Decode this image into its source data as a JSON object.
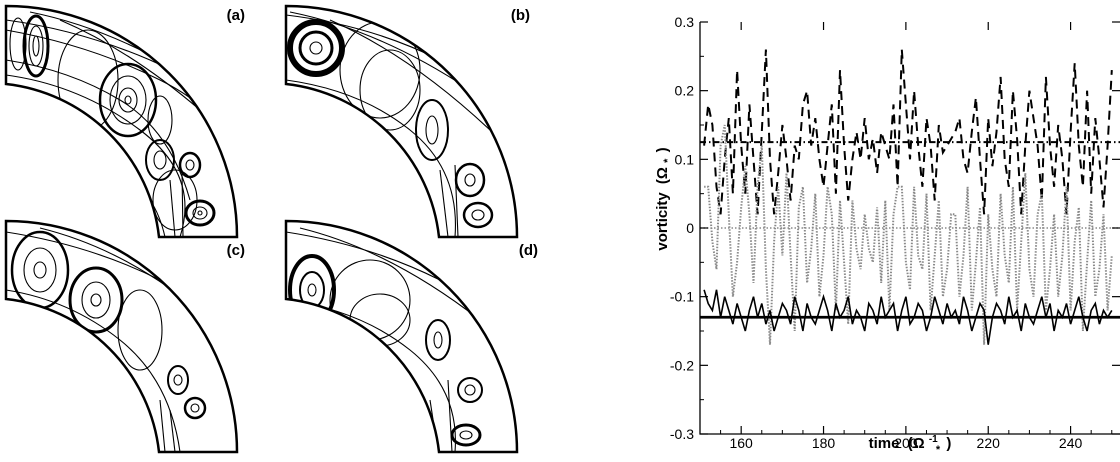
{
  "panels": [
    {
      "label": "(a)"
    },
    {
      "label": "(b)"
    },
    {
      "label": "(c)"
    },
    {
      "label": "(d)"
    }
  ],
  "colors": {
    "ink": "#000000",
    "dotted": "#8a8a8a"
  },
  "chart_data": {
    "type": "line",
    "title": "",
    "xlabel": "time",
    "xlabel_unit": "(Ω",
    "xlabel_unit_sub": "*",
    "xlabel_unit_sup": "-1",
    "xlabel_close": ")",
    "ylabel": "vorticity",
    "ylabel_unit": "(Ω",
    "ylabel_unit_sub": "*",
    "ylabel_close": ")",
    "xlim": [
      150,
      252
    ],
    "ylim": [
      -0.3,
      0.3
    ],
    "x_ticks": [
      160,
      180,
      200,
      220,
      240
    ],
    "x_tick_labels": [
      "160",
      "180",
      "200",
      "220",
      "240"
    ],
    "y_ticks": [
      -0.3,
      -0.2,
      -0.1,
      0,
      0.1,
      0.2,
      0.3
    ],
    "y_tick_labels": [
      "-0.3",
      "-0.2",
      "-0.1",
      "0",
      "0.1",
      "0.2",
      "0.3"
    ],
    "grid": false,
    "series": [
      {
        "style": "dashed",
        "x": [
          151,
          152,
          153,
          154,
          155,
          156,
          157,
          158,
          159,
          160,
          161,
          162,
          163,
          164,
          165,
          166,
          167,
          168,
          169,
          170,
          171,
          172,
          173,
          174,
          175,
          176,
          177,
          178,
          179,
          180,
          181,
          182,
          183,
          184,
          185,
          186,
          187,
          188,
          189,
          190,
          191,
          192,
          193,
          194,
          195,
          196,
          197,
          198,
          199,
          200,
          201,
          202,
          203,
          204,
          205,
          206,
          207,
          208,
          209,
          210,
          211,
          212,
          213,
          214,
          215,
          216,
          217,
          218,
          219,
          220,
          221,
          222,
          223,
          224,
          225,
          226,
          227,
          228,
          229,
          230,
          231,
          232,
          233,
          234,
          235,
          236,
          237,
          238,
          239,
          240,
          241,
          242,
          243,
          244,
          245,
          246,
          247,
          248,
          249,
          250
        ],
        "y": [
          0.12,
          0.18,
          0.15,
          0.06,
          0.02,
          0.1,
          0.16,
          0.05,
          0.23,
          0.12,
          0.05,
          0.18,
          0.1,
          0.02,
          0.14,
          0.26,
          0.1,
          0.02,
          0.08,
          0.15,
          0.1,
          0.04,
          0.12,
          0.1,
          0.18,
          0.2,
          0.12,
          0.16,
          0.1,
          0.06,
          0.12,
          0.18,
          0.05,
          0.23,
          0.12,
          0.04,
          0.1,
          0.14,
          0.1,
          0.16,
          0.1,
          0.13,
          0.08,
          0.14,
          0.12,
          0.1,
          0.18,
          0.06,
          0.26,
          0.18,
          0.1,
          0.2,
          0.12,
          0.06,
          0.16,
          0.12,
          0.04,
          0.15,
          0.11,
          0.12,
          0.13,
          0.14,
          0.16,
          0.1,
          0.08,
          0.14,
          0.19,
          0.1,
          0.02,
          0.16,
          0.09,
          0.14,
          0.22,
          0.1,
          0.06,
          0.2,
          0.13,
          0.02,
          0.12,
          0.2,
          0.16,
          0.12,
          0.04,
          0.22,
          0.12,
          0.06,
          0.15,
          0.1,
          0.02,
          0.14,
          0.24,
          0.12,
          0.06,
          0.2,
          0.05,
          0.16,
          0.1,
          0.03,
          0.12,
          0.23
        ]
      },
      {
        "style": "dotted",
        "x": [
          151,
          152,
          153,
          154,
          155,
          156,
          157,
          158,
          159,
          160,
          161,
          162,
          163,
          164,
          165,
          166,
          167,
          168,
          169,
          170,
          171,
          172,
          173,
          174,
          175,
          176,
          177,
          178,
          179,
          180,
          181,
          182,
          183,
          184,
          185,
          186,
          187,
          188,
          189,
          190,
          191,
          192,
          193,
          194,
          195,
          196,
          197,
          198,
          199,
          200,
          201,
          202,
          203,
          204,
          205,
          206,
          207,
          208,
          209,
          210,
          211,
          212,
          213,
          214,
          215,
          216,
          217,
          218,
          219,
          220,
          221,
          222,
          223,
          224,
          225,
          226,
          227,
          228,
          229,
          230,
          231,
          232,
          233,
          234,
          235,
          236,
          237,
          238,
          239,
          240,
          241,
          242,
          243,
          244,
          245,
          246,
          247,
          248,
          249,
          250
        ],
        "y": [
          0.06,
          0.06,
          -0.02,
          -0.06,
          0.12,
          0.15,
          0.02,
          -0.1,
          -0.05,
          0.03,
          0.09,
          0.02,
          -0.08,
          0.06,
          0.12,
          -0.06,
          -0.17,
          -0.02,
          0.06,
          -0.04,
          0.08,
          -0.04,
          -0.15,
          0.03,
          0.06,
          -0.08,
          -0.03,
          0.05,
          -0.1,
          -0.04,
          0.06,
          0.02,
          -0.12,
          0.04,
          -0.05,
          -0.14,
          0.04,
          -0.03,
          -0.06,
          0.02,
          -0.03,
          -0.05,
          0.03,
          -0.08,
          0.04,
          -0.12,
          0.02,
          0.06,
          0.06,
          -0.05,
          -0.09,
          0.06,
          -0.04,
          -0.06,
          0.05,
          -0.12,
          -0.04,
          0.04,
          -0.1,
          -0.06,
          0.02,
          0.02,
          -0.1,
          -0.04,
          0.06,
          -0.12,
          -0.05,
          0.03,
          -0.17,
          0.02,
          -0.06,
          -0.1,
          0.05,
          -0.04,
          -0.08,
          0.06,
          -0.12,
          -0.02,
          0.08,
          -0.06,
          -0.1,
          0.02,
          0.05,
          -0.12,
          -0.06,
          0.02,
          -0.1,
          -0.04,
          0.06,
          -0.12,
          -0.02,
          0.03,
          -0.15,
          -0.05,
          0.04,
          -0.1,
          -0.06,
          0.02,
          -0.12,
          -0.04
        ]
      },
      {
        "style": "solid",
        "x": [
          151,
          152,
          153,
          154,
          155,
          156,
          157,
          158,
          159,
          160,
          161,
          162,
          163,
          164,
          165,
          166,
          167,
          168,
          169,
          170,
          171,
          172,
          173,
          174,
          175,
          176,
          177,
          178,
          179,
          180,
          181,
          182,
          183,
          184,
          185,
          186,
          187,
          188,
          189,
          190,
          191,
          192,
          193,
          194,
          195,
          196,
          197,
          198,
          199,
          200,
          201,
          202,
          203,
          204,
          205,
          206,
          207,
          208,
          209,
          210,
          211,
          212,
          213,
          214,
          215,
          216,
          217,
          218,
          219,
          220,
          221,
          222,
          223,
          224,
          225,
          226,
          227,
          228,
          229,
          230,
          231,
          232,
          233,
          234,
          235,
          236,
          237,
          238,
          239,
          240,
          241,
          242,
          243,
          244,
          245,
          246,
          247,
          248,
          249,
          250
        ],
        "y": [
          -0.09,
          -0.11,
          -0.12,
          -0.09,
          -0.13,
          -0.1,
          -0.12,
          -0.14,
          -0.11,
          -0.13,
          -0.15,
          -0.12,
          -0.1,
          -0.13,
          -0.11,
          -0.14,
          -0.12,
          -0.15,
          -0.13,
          -0.11,
          -0.12,
          -0.14,
          -0.1,
          -0.12,
          -0.15,
          -0.11,
          -0.13,
          -0.14,
          -0.12,
          -0.1,
          -0.12,
          -0.15,
          -0.11,
          -0.13,
          -0.12,
          -0.1,
          -0.14,
          -0.12,
          -0.13,
          -0.15,
          -0.11,
          -0.12,
          -0.14,
          -0.1,
          -0.13,
          -0.12,
          -0.11,
          -0.15,
          -0.12,
          -0.1,
          -0.14,
          -0.13,
          -0.11,
          -0.12,
          -0.15,
          -0.13,
          -0.1,
          -0.12,
          -0.14,
          -0.11,
          -0.13,
          -0.12,
          -0.14,
          -0.1,
          -0.12,
          -0.15,
          -0.13,
          -0.11,
          -0.12,
          -0.17,
          -0.13,
          -0.11,
          -0.12,
          -0.14,
          -0.1,
          -0.13,
          -0.12,
          -0.15,
          -0.11,
          -0.13,
          -0.14,
          -0.12,
          -0.1,
          -0.13,
          -0.11,
          -0.15,
          -0.12,
          -0.13,
          -0.11,
          -0.14,
          -0.12,
          -0.1,
          -0.13,
          -0.15,
          -0.12,
          -0.11,
          -0.14,
          -0.12,
          -0.13,
          -0.12
        ]
      },
      {
        "style": "dash-dot",
        "y_constant": 0.125
      },
      {
        "style": "dotted-thin",
        "y_constant": 0.0
      },
      {
        "style": "solid-thick",
        "y_constant": -0.13
      }
    ]
  }
}
